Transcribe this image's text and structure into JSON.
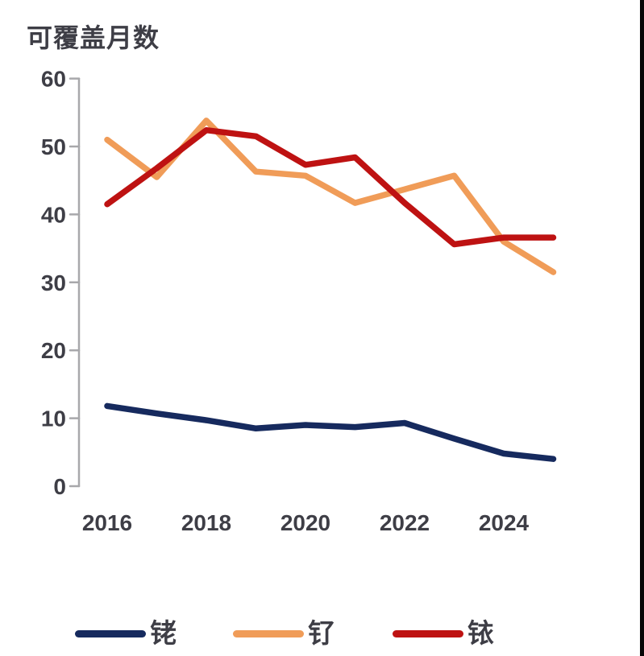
{
  "title": "可覆盖月数",
  "colors": {
    "background": "#ffffff",
    "text": "#3e3e46",
    "axis": "#a8a8ab",
    "edge_bar": "#060606",
    "rhodium": "#162a5e",
    "ruthenium": "#f09c58",
    "iridium": "#be1212"
  },
  "chart_data": {
    "type": "line",
    "title": "可覆盖月数",
    "xlabel": "",
    "ylabel": "可覆盖月数",
    "x": [
      2016,
      2017,
      2018,
      2019,
      2020,
      2021,
      2022,
      2023,
      2024,
      2025
    ],
    "xticks": [
      2016,
      2018,
      2020,
      2022,
      2024
    ],
    "yticks": [
      0,
      10,
      20,
      30,
      40,
      50,
      60
    ],
    "ylim": [
      0,
      60
    ],
    "grid": false,
    "legend_position": "bottom",
    "series": [
      {
        "name": "铑",
        "name_en": "rhodium",
        "color": "#162a5e",
        "values": [
          11.8,
          10.7,
          9.7,
          8.5,
          9.0,
          8.7,
          9.3,
          7.0,
          4.8,
          4.0
        ]
      },
      {
        "name": "钌",
        "name_en": "ruthenium",
        "color": "#f09c58",
        "values": [
          51.0,
          45.5,
          53.8,
          46.3,
          45.7,
          41.7,
          43.7,
          45.7,
          36.0,
          31.5
        ]
      },
      {
        "name": "铱",
        "name_en": "iridium",
        "color": "#be1212",
        "values": [
          41.5,
          46.8,
          52.4,
          51.5,
          47.3,
          48.4,
          41.7,
          35.6,
          36.6,
          36.6
        ]
      }
    ]
  }
}
